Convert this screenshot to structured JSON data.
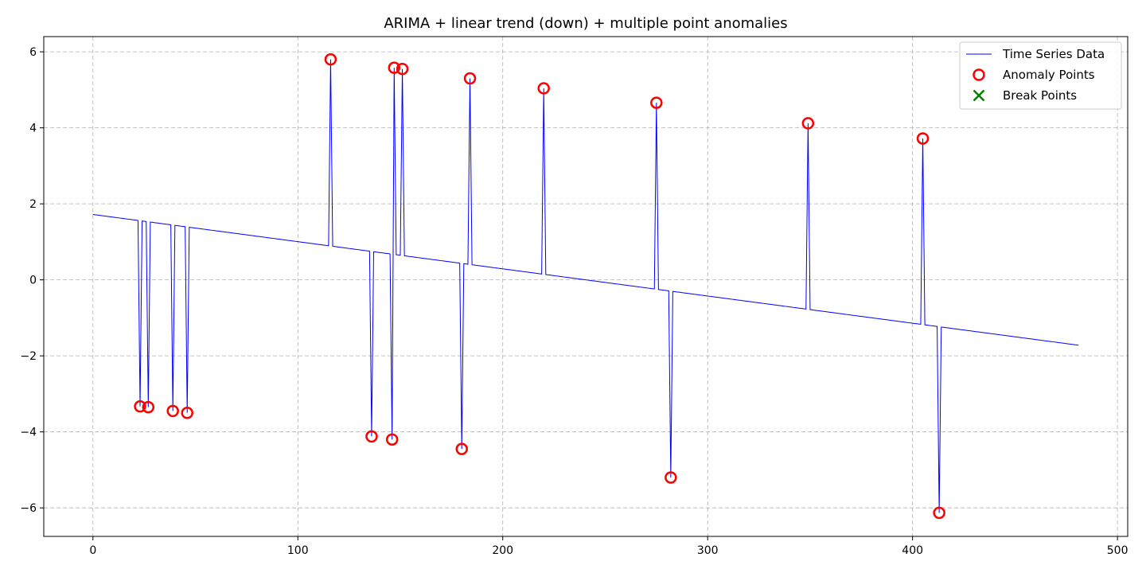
{
  "chart_data": {
    "type": "line",
    "title": "ARIMA + linear trend (down) + multiple point anomalies",
    "xlabel": "",
    "ylabel": "",
    "xlim": [
      -24,
      505
    ],
    "ylim": [
      -6.75,
      6.4
    ],
    "x_ticks": [
      0,
      100,
      200,
      300,
      400,
      500
    ],
    "y_ticks": [
      -6,
      -4,
      -2,
      0,
      2,
      4,
      6
    ],
    "grid": true,
    "legend_position": "top-right",
    "series": [
      {
        "name": "Time Series Data",
        "kind": "line",
        "color": "#0000ff",
        "trend": {
          "x_start": 0,
          "y_start": 1.72,
          "x_end": 481,
          "y_end": -1.72
        }
      },
      {
        "name": "Anomaly Points",
        "kind": "marker-circle",
        "color": "#ff0000",
        "points": [
          [
            23,
            -3.33
          ],
          [
            27,
            -3.35
          ],
          [
            39,
            -3.45
          ],
          [
            46,
            -3.5
          ],
          [
            116,
            5.8
          ],
          [
            136,
            -4.12
          ],
          [
            146,
            -4.2
          ],
          [
            147,
            5.58
          ],
          [
            151,
            5.55
          ],
          [
            180,
            -4.45
          ],
          [
            184,
            5.3
          ],
          [
            220,
            5.04
          ],
          [
            275,
            4.66
          ],
          [
            282,
            -5.2
          ],
          [
            349,
            4.12
          ],
          [
            405,
            3.72
          ],
          [
            413,
            -6.13
          ]
        ]
      },
      {
        "name": "Break Points",
        "kind": "marker-x",
        "color": "#008000",
        "points": []
      }
    ]
  }
}
